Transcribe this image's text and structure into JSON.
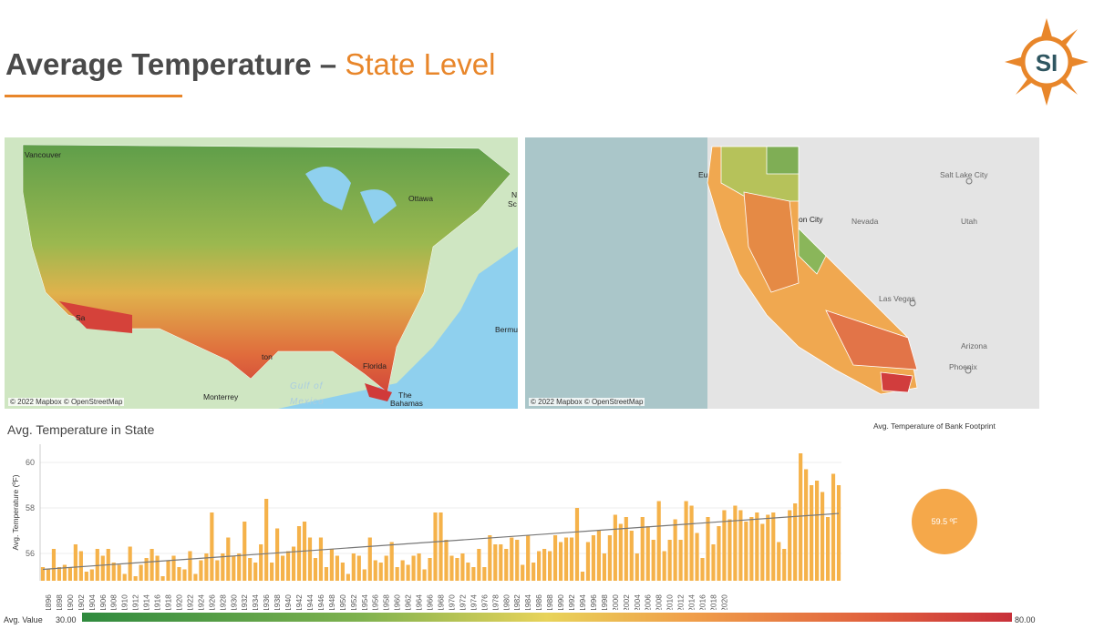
{
  "header": {
    "title_main": "Average Temperature –",
    "title_accent": "State Level",
    "logo_text": "SI"
  },
  "map_us": {
    "credit": "© 2022 Mapbox © OpenStreetMap",
    "labels": [
      "Vancouver",
      "Ottawa",
      "Sa",
      "ton",
      "Monterrey",
      "Gulf of",
      "Mexico",
      "Florida",
      "The",
      "Bahamas",
      "Bermu",
      "N",
      "Sc"
    ]
  },
  "map_ca": {
    "credit": "© 2022 Mapbox © OpenStreetMap",
    "labels": [
      "Eu",
      "Salt Lake City",
      "on City",
      "Nevada",
      "Utah",
      "Las Vegas",
      "Arizona",
      "Phoenix"
    ]
  },
  "chart_title": "Avg. Temperature in State",
  "footprint": {
    "title": "Avg. Temperature of Bank Footprint",
    "value": "59.5 ºF"
  },
  "colors": {
    "accent": "#e8862a",
    "bar": "#f5b24a",
    "trend": "#777777"
  },
  "legend": {
    "label": "Avg. Value",
    "min": "30.00",
    "max": "80.00"
  },
  "chart_data": {
    "type": "bar",
    "ylabel": "Avg. Temperature (ºF)",
    "ylim": [
      54.8,
      60.8
    ],
    "yticks": [
      56,
      58,
      60
    ],
    "xtick_labels": [
      "1896",
      "1898",
      "1900",
      "1902",
      "1904",
      "1906",
      "1908",
      "1910",
      "1912",
      "1914",
      "1916",
      "1918",
      "1920",
      "1922",
      "1924",
      "1926",
      "1928",
      "1930",
      "1932",
      "1934",
      "1936",
      "1938",
      "1940",
      "1942",
      "1944",
      "1946",
      "1948",
      "1950",
      "1952",
      "1954",
      "1956",
      "1958",
      "1960",
      "1962",
      "1964",
      "1966",
      "1968",
      "1970",
      "1972",
      "1974",
      "1976",
      "1978",
      "1980",
      "1982",
      "1984",
      "1986",
      "1988",
      "1990",
      "1992",
      "1994",
      "1996",
      "1998",
      "2000",
      "2002",
      "2004",
      "2006",
      "2008",
      "2010",
      "2012",
      "2014",
      "2016",
      "2018",
      "2020"
    ],
    "start_year": 1895,
    "values": [
      55.4,
      55.3,
      56.2,
      55.4,
      55.5,
      55.4,
      56.4,
      56.1,
      55.2,
      55.3,
      56.2,
      55.9,
      56.2,
      55.6,
      55.5,
      55.1,
      56.3,
      55.0,
      55.5,
      55.8,
      56.2,
      55.9,
      55.0,
      55.7,
      55.9,
      55.4,
      55.3,
      56.1,
      55.1,
      55.7,
      56.0,
      57.8,
      55.7,
      56.0,
      56.7,
      55.9,
      56.0,
      57.4,
      55.8,
      55.6,
      56.4,
      58.4,
      55.6,
      57.1,
      55.9,
      56.1,
      56.3,
      57.2,
      57.4,
      56.7,
      55.8,
      56.7,
      55.4,
      56.2,
      55.9,
      55.6,
      55.1,
      56.0,
      55.9,
      55.3,
      56.7,
      55.7,
      55.6,
      55.9,
      56.5,
      55.4,
      55.7,
      55.5,
      55.9,
      56.0,
      55.3,
      55.8,
      57.8,
      57.8,
      56.6,
      55.9,
      55.8,
      56.0,
      55.6,
      55.4,
      56.2,
      55.4,
      56.8,
      56.4,
      56.4,
      56.2,
      56.7,
      56.6,
      55.5,
      56.8,
      55.6,
      56.1,
      56.2,
      56.1,
      56.8,
      56.5,
      56.7,
      56.7,
      58.0,
      55.2,
      56.5,
      56.8,
      57.0,
      56.0,
      56.8,
      57.7,
      57.3,
      57.6,
      57.0,
      56.0,
      57.6,
      57.2,
      56.6,
      58.3,
      56.1,
      56.6,
      57.5,
      56.6,
      58.3,
      58.1,
      56.9,
      55.8,
      57.6,
      56.4,
      57.2,
      57.9,
      57.5,
      58.1,
      57.9,
      57.4,
      57.6,
      57.8,
      57.3,
      57.7,
      57.8,
      56.5,
      56.2,
      57.9,
      58.2,
      60.4,
      59.7,
      59.0,
      59.2,
      58.7,
      57.6,
      59.5,
      59.0
    ]
  }
}
